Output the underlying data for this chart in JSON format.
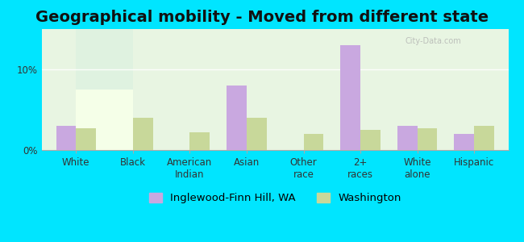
{
  "title": "Geographical mobility - Moved from different state",
  "categories": [
    "White",
    "Black",
    "American\nIndian",
    "Asian",
    "Other\nrace",
    "2+\nraces",
    "White\nalone",
    "Hispanic"
  ],
  "inglewood_values": [
    3.0,
    0.0,
    0.0,
    8.0,
    0.0,
    13.0,
    3.0,
    2.0
  ],
  "washington_values": [
    2.7,
    4.0,
    2.2,
    4.0,
    2.0,
    2.5,
    2.7,
    3.0
  ],
  "bar_color_inglewood": "#c9a8e0",
  "bar_color_washington": "#c8d89a",
  "background_top": "#e8f5e9",
  "background_bottom": "#f5ffe5",
  "outer_bg": "#00e5ff",
  "ylim": [
    0,
    15
  ],
  "yticks": [
    0,
    10
  ],
  "ytick_labels": [
    "0%",
    "10%"
  ],
  "legend_label_1": "Inglewood-Finn Hill, WA",
  "legend_label_2": "Washington",
  "bar_width": 0.35,
  "title_fontsize": 14,
  "tick_fontsize": 8.5,
  "legend_fontsize": 9.5
}
